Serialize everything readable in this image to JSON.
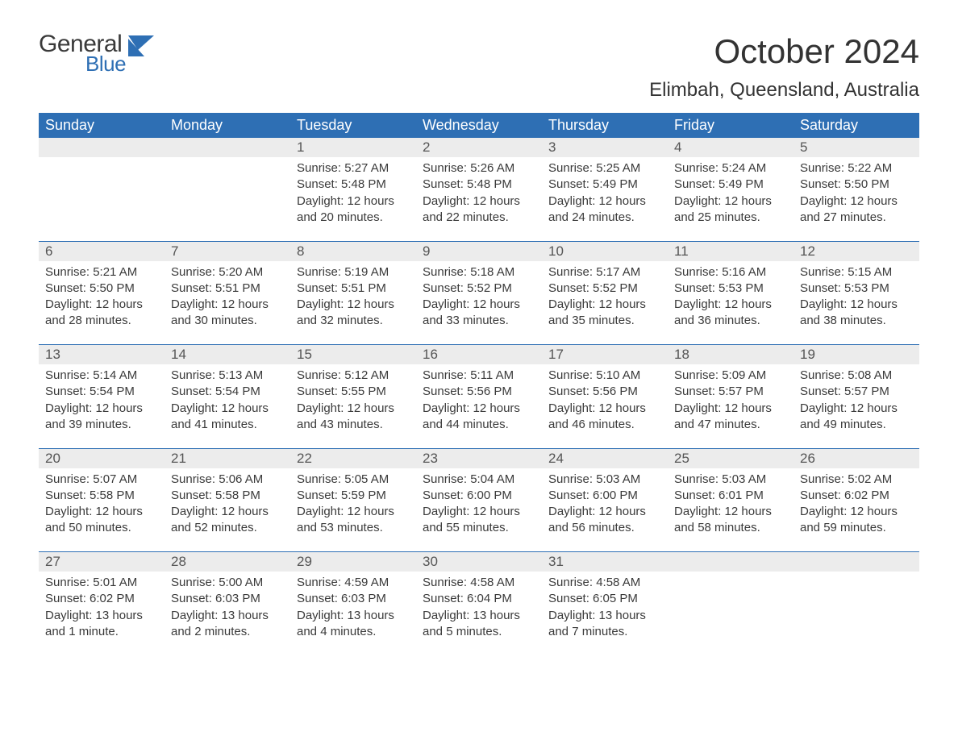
{
  "brand": {
    "line1": "General",
    "line2": "Blue",
    "line1_color": "#3a3a3a",
    "line2_color": "#2e6fb4"
  },
  "title": "October 2024",
  "subtitle": "Elimbah, Queensland, Australia",
  "colors": {
    "header_bg": "#2e6fb4",
    "header_text": "#ffffff",
    "daynum_bg": "#ececec",
    "daynum_text": "#555555",
    "body_text": "#3a3a3a",
    "row_divider": "#2e6fb4",
    "page_bg": "#ffffff"
  },
  "typography": {
    "title_fontsize": 42,
    "subtitle_fontsize": 24,
    "dayheader_fontsize": 18,
    "daynum_fontsize": 17,
    "body_fontsize": 15
  },
  "day_headers": [
    "Sunday",
    "Monday",
    "Tuesday",
    "Wednesday",
    "Thursday",
    "Friday",
    "Saturday"
  ],
  "weeks": [
    [
      {
        "n": "",
        "sr": "",
        "ss": "",
        "dl": ""
      },
      {
        "n": "",
        "sr": "",
        "ss": "",
        "dl": ""
      },
      {
        "n": "1",
        "sr": "Sunrise: 5:27 AM",
        "ss": "Sunset: 5:48 PM",
        "dl": "Daylight: 12 hours and 20 minutes."
      },
      {
        "n": "2",
        "sr": "Sunrise: 5:26 AM",
        "ss": "Sunset: 5:48 PM",
        "dl": "Daylight: 12 hours and 22 minutes."
      },
      {
        "n": "3",
        "sr": "Sunrise: 5:25 AM",
        "ss": "Sunset: 5:49 PM",
        "dl": "Daylight: 12 hours and 24 minutes."
      },
      {
        "n": "4",
        "sr": "Sunrise: 5:24 AM",
        "ss": "Sunset: 5:49 PM",
        "dl": "Daylight: 12 hours and 25 minutes."
      },
      {
        "n": "5",
        "sr": "Sunrise: 5:22 AM",
        "ss": "Sunset: 5:50 PM",
        "dl": "Daylight: 12 hours and 27 minutes."
      }
    ],
    [
      {
        "n": "6",
        "sr": "Sunrise: 5:21 AM",
        "ss": "Sunset: 5:50 PM",
        "dl": "Daylight: 12 hours and 28 minutes."
      },
      {
        "n": "7",
        "sr": "Sunrise: 5:20 AM",
        "ss": "Sunset: 5:51 PM",
        "dl": "Daylight: 12 hours and 30 minutes."
      },
      {
        "n": "8",
        "sr": "Sunrise: 5:19 AM",
        "ss": "Sunset: 5:51 PM",
        "dl": "Daylight: 12 hours and 32 minutes."
      },
      {
        "n": "9",
        "sr": "Sunrise: 5:18 AM",
        "ss": "Sunset: 5:52 PM",
        "dl": "Daylight: 12 hours and 33 minutes."
      },
      {
        "n": "10",
        "sr": "Sunrise: 5:17 AM",
        "ss": "Sunset: 5:52 PM",
        "dl": "Daylight: 12 hours and 35 minutes."
      },
      {
        "n": "11",
        "sr": "Sunrise: 5:16 AM",
        "ss": "Sunset: 5:53 PM",
        "dl": "Daylight: 12 hours and 36 minutes."
      },
      {
        "n": "12",
        "sr": "Sunrise: 5:15 AM",
        "ss": "Sunset: 5:53 PM",
        "dl": "Daylight: 12 hours and 38 minutes."
      }
    ],
    [
      {
        "n": "13",
        "sr": "Sunrise: 5:14 AM",
        "ss": "Sunset: 5:54 PM",
        "dl": "Daylight: 12 hours and 39 minutes."
      },
      {
        "n": "14",
        "sr": "Sunrise: 5:13 AM",
        "ss": "Sunset: 5:54 PM",
        "dl": "Daylight: 12 hours and 41 minutes."
      },
      {
        "n": "15",
        "sr": "Sunrise: 5:12 AM",
        "ss": "Sunset: 5:55 PM",
        "dl": "Daylight: 12 hours and 43 minutes."
      },
      {
        "n": "16",
        "sr": "Sunrise: 5:11 AM",
        "ss": "Sunset: 5:56 PM",
        "dl": "Daylight: 12 hours and 44 minutes."
      },
      {
        "n": "17",
        "sr": "Sunrise: 5:10 AM",
        "ss": "Sunset: 5:56 PM",
        "dl": "Daylight: 12 hours and 46 minutes."
      },
      {
        "n": "18",
        "sr": "Sunrise: 5:09 AM",
        "ss": "Sunset: 5:57 PM",
        "dl": "Daylight: 12 hours and 47 minutes."
      },
      {
        "n": "19",
        "sr": "Sunrise: 5:08 AM",
        "ss": "Sunset: 5:57 PM",
        "dl": "Daylight: 12 hours and 49 minutes."
      }
    ],
    [
      {
        "n": "20",
        "sr": "Sunrise: 5:07 AM",
        "ss": "Sunset: 5:58 PM",
        "dl": "Daylight: 12 hours and 50 minutes."
      },
      {
        "n": "21",
        "sr": "Sunrise: 5:06 AM",
        "ss": "Sunset: 5:58 PM",
        "dl": "Daylight: 12 hours and 52 minutes."
      },
      {
        "n": "22",
        "sr": "Sunrise: 5:05 AM",
        "ss": "Sunset: 5:59 PM",
        "dl": "Daylight: 12 hours and 53 minutes."
      },
      {
        "n": "23",
        "sr": "Sunrise: 5:04 AM",
        "ss": "Sunset: 6:00 PM",
        "dl": "Daylight: 12 hours and 55 minutes."
      },
      {
        "n": "24",
        "sr": "Sunrise: 5:03 AM",
        "ss": "Sunset: 6:00 PM",
        "dl": "Daylight: 12 hours and 56 minutes."
      },
      {
        "n": "25",
        "sr": "Sunrise: 5:03 AM",
        "ss": "Sunset: 6:01 PM",
        "dl": "Daylight: 12 hours and 58 minutes."
      },
      {
        "n": "26",
        "sr": "Sunrise: 5:02 AM",
        "ss": "Sunset: 6:02 PM",
        "dl": "Daylight: 12 hours and 59 minutes."
      }
    ],
    [
      {
        "n": "27",
        "sr": "Sunrise: 5:01 AM",
        "ss": "Sunset: 6:02 PM",
        "dl": "Daylight: 13 hours and 1 minute."
      },
      {
        "n": "28",
        "sr": "Sunrise: 5:00 AM",
        "ss": "Sunset: 6:03 PM",
        "dl": "Daylight: 13 hours and 2 minutes."
      },
      {
        "n": "29",
        "sr": "Sunrise: 4:59 AM",
        "ss": "Sunset: 6:03 PM",
        "dl": "Daylight: 13 hours and 4 minutes."
      },
      {
        "n": "30",
        "sr": "Sunrise: 4:58 AM",
        "ss": "Sunset: 6:04 PM",
        "dl": "Daylight: 13 hours and 5 minutes."
      },
      {
        "n": "31",
        "sr": "Sunrise: 4:58 AM",
        "ss": "Sunset: 6:05 PM",
        "dl": "Daylight: 13 hours and 7 minutes."
      },
      {
        "n": "",
        "sr": "",
        "ss": "",
        "dl": ""
      },
      {
        "n": "",
        "sr": "",
        "ss": "",
        "dl": ""
      }
    ]
  ]
}
